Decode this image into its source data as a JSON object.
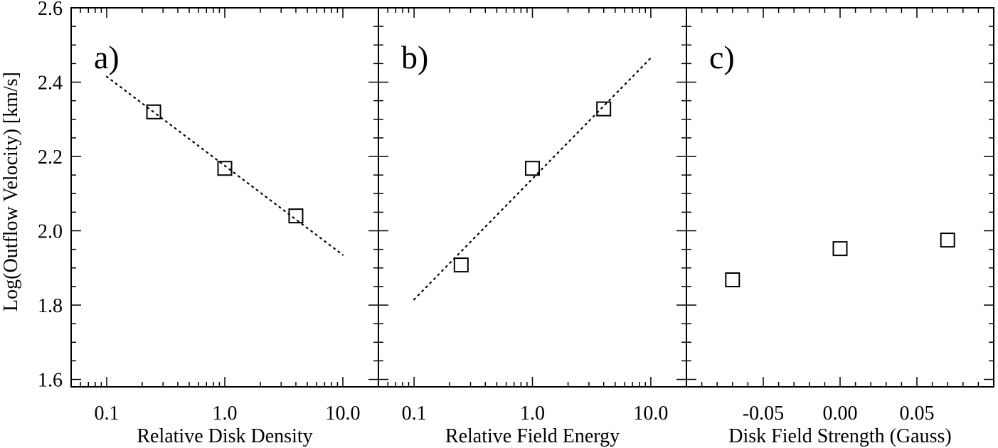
{
  "chart_data": {
    "type": "scatter",
    "ylabel": "Log(Outflow Velocity)   [km/s]",
    "ylim": [
      1.58,
      2.6
    ],
    "yticks": [
      1.6,
      1.8,
      2.0,
      2.2,
      2.4,
      2.6
    ],
    "ytick_labels": [
      "1.6",
      "1.8",
      "2.0",
      "2.2",
      "2.4",
      "2.6"
    ],
    "panels": [
      {
        "id": "a",
        "label": "a)",
        "xlabel": "Relative Disk Density",
        "xscale": "log",
        "xlim": [
          0.05,
          20
        ],
        "xticks": [
          0.1,
          1.0,
          10.0
        ],
        "xtick_labels": [
          "0.1",
          "1.0",
          "10.0"
        ],
        "points": [
          {
            "x": 0.25,
            "y": 2.32
          },
          {
            "x": 1.0,
            "y": 2.168
          },
          {
            "x": 4.0,
            "y": 2.04
          }
        ],
        "fit_line": {
          "x": [
            0.1,
            10.0
          ],
          "y": [
            2.415,
            1.935
          ]
        }
      },
      {
        "id": "b",
        "label": "b)",
        "xlabel": "Relative Field Energy",
        "xscale": "log",
        "xlim": [
          0.05,
          20
        ],
        "xticks": [
          0.1,
          1.0,
          10.0
        ],
        "xtick_labels": [
          "0.1",
          "1.0",
          "10.0"
        ],
        "points": [
          {
            "x": 0.25,
            "y": 1.908
          },
          {
            "x": 1.0,
            "y": 2.168
          },
          {
            "x": 4.0,
            "y": 2.328
          }
        ],
        "fit_line": {
          "x": [
            0.1,
            10.0
          ],
          "y": [
            1.815,
            2.465
          ]
        }
      },
      {
        "id": "c",
        "label": "c)",
        "xlabel": "Disk Field Strength (Gauss)",
        "xscale": "linear",
        "xlim": [
          -0.1,
          0.1
        ],
        "xticks": [
          -0.05,
          0.0,
          0.05
        ],
        "xtick_labels": [
          "-0.05",
          "0.00",
          "0.05"
        ],
        "points": [
          {
            "x": -0.07,
            "y": 1.868
          },
          {
            "x": 0.0,
            "y": 1.952
          },
          {
            "x": 0.07,
            "y": 1.975
          }
        ],
        "fit_line": null
      }
    ]
  }
}
